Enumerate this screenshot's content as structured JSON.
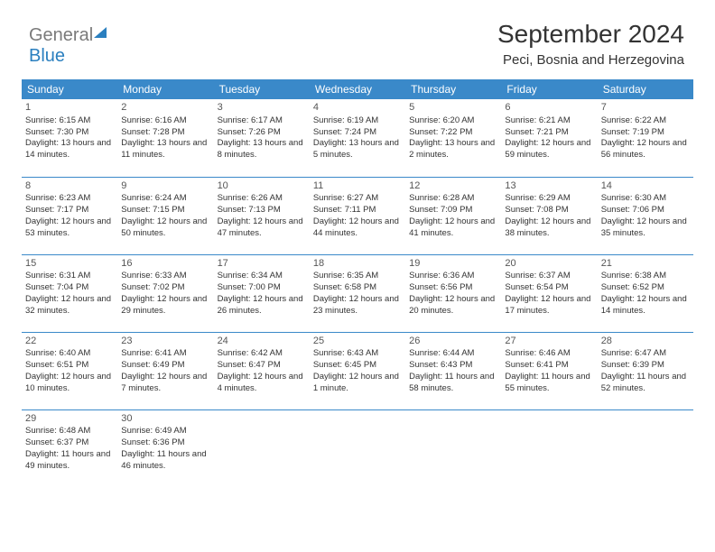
{
  "logo": {
    "part1": "General",
    "part2": "Blue"
  },
  "header": {
    "title": "September 2024",
    "location": "Peci, Bosnia and Herzegovina"
  },
  "colors": {
    "header_bg": "#3a89c9",
    "header_fg": "#ffffff",
    "rule": "#3a89c9",
    "text": "#333333",
    "logo_gray": "#7a7a7a",
    "logo_blue": "#2a7fbf"
  },
  "weekdays": [
    "Sunday",
    "Monday",
    "Tuesday",
    "Wednesday",
    "Thursday",
    "Friday",
    "Saturday"
  ],
  "days": {
    "1": {
      "sr": "6:15 AM",
      "ss": "7:30 PM",
      "dl": "13 hours and 14 minutes."
    },
    "2": {
      "sr": "6:16 AM",
      "ss": "7:28 PM",
      "dl": "13 hours and 11 minutes."
    },
    "3": {
      "sr": "6:17 AM",
      "ss": "7:26 PM",
      "dl": "13 hours and 8 minutes."
    },
    "4": {
      "sr": "6:19 AM",
      "ss": "7:24 PM",
      "dl": "13 hours and 5 minutes."
    },
    "5": {
      "sr": "6:20 AM",
      "ss": "7:22 PM",
      "dl": "13 hours and 2 minutes."
    },
    "6": {
      "sr": "6:21 AM",
      "ss": "7:21 PM",
      "dl": "12 hours and 59 minutes."
    },
    "7": {
      "sr": "6:22 AM",
      "ss": "7:19 PM",
      "dl": "12 hours and 56 minutes."
    },
    "8": {
      "sr": "6:23 AM",
      "ss": "7:17 PM",
      "dl": "12 hours and 53 minutes."
    },
    "9": {
      "sr": "6:24 AM",
      "ss": "7:15 PM",
      "dl": "12 hours and 50 minutes."
    },
    "10": {
      "sr": "6:26 AM",
      "ss": "7:13 PM",
      "dl": "12 hours and 47 minutes."
    },
    "11": {
      "sr": "6:27 AM",
      "ss": "7:11 PM",
      "dl": "12 hours and 44 minutes."
    },
    "12": {
      "sr": "6:28 AM",
      "ss": "7:09 PM",
      "dl": "12 hours and 41 minutes."
    },
    "13": {
      "sr": "6:29 AM",
      "ss": "7:08 PM",
      "dl": "12 hours and 38 minutes."
    },
    "14": {
      "sr": "6:30 AM",
      "ss": "7:06 PM",
      "dl": "12 hours and 35 minutes."
    },
    "15": {
      "sr": "6:31 AM",
      "ss": "7:04 PM",
      "dl": "12 hours and 32 minutes."
    },
    "16": {
      "sr": "6:33 AM",
      "ss": "7:02 PM",
      "dl": "12 hours and 29 minutes."
    },
    "17": {
      "sr": "6:34 AM",
      "ss": "7:00 PM",
      "dl": "12 hours and 26 minutes."
    },
    "18": {
      "sr": "6:35 AM",
      "ss": "6:58 PM",
      "dl": "12 hours and 23 minutes."
    },
    "19": {
      "sr": "6:36 AM",
      "ss": "6:56 PM",
      "dl": "12 hours and 20 minutes."
    },
    "20": {
      "sr": "6:37 AM",
      "ss": "6:54 PM",
      "dl": "12 hours and 17 minutes."
    },
    "21": {
      "sr": "6:38 AM",
      "ss": "6:52 PM",
      "dl": "12 hours and 14 minutes."
    },
    "22": {
      "sr": "6:40 AM",
      "ss": "6:51 PM",
      "dl": "12 hours and 10 minutes."
    },
    "23": {
      "sr": "6:41 AM",
      "ss": "6:49 PM",
      "dl": "12 hours and 7 minutes."
    },
    "24": {
      "sr": "6:42 AM",
      "ss": "6:47 PM",
      "dl": "12 hours and 4 minutes."
    },
    "25": {
      "sr": "6:43 AM",
      "ss": "6:45 PM",
      "dl": "12 hours and 1 minute."
    },
    "26": {
      "sr": "6:44 AM",
      "ss": "6:43 PM",
      "dl": "11 hours and 58 minutes."
    },
    "27": {
      "sr": "6:46 AM",
      "ss": "6:41 PM",
      "dl": "11 hours and 55 minutes."
    },
    "28": {
      "sr": "6:47 AM",
      "ss": "6:39 PM",
      "dl": "11 hours and 52 minutes."
    },
    "29": {
      "sr": "6:48 AM",
      "ss": "6:37 PM",
      "dl": "11 hours and 49 minutes."
    },
    "30": {
      "sr": "6:49 AM",
      "ss": "6:36 PM",
      "dl": "11 hours and 46 minutes."
    }
  },
  "labels": {
    "sunrise": "Sunrise: ",
    "sunset": "Sunset: ",
    "daylight": "Daylight: "
  },
  "layout": {
    "first_weekday_index": 0,
    "num_days": 30,
    "cols": 7
  }
}
